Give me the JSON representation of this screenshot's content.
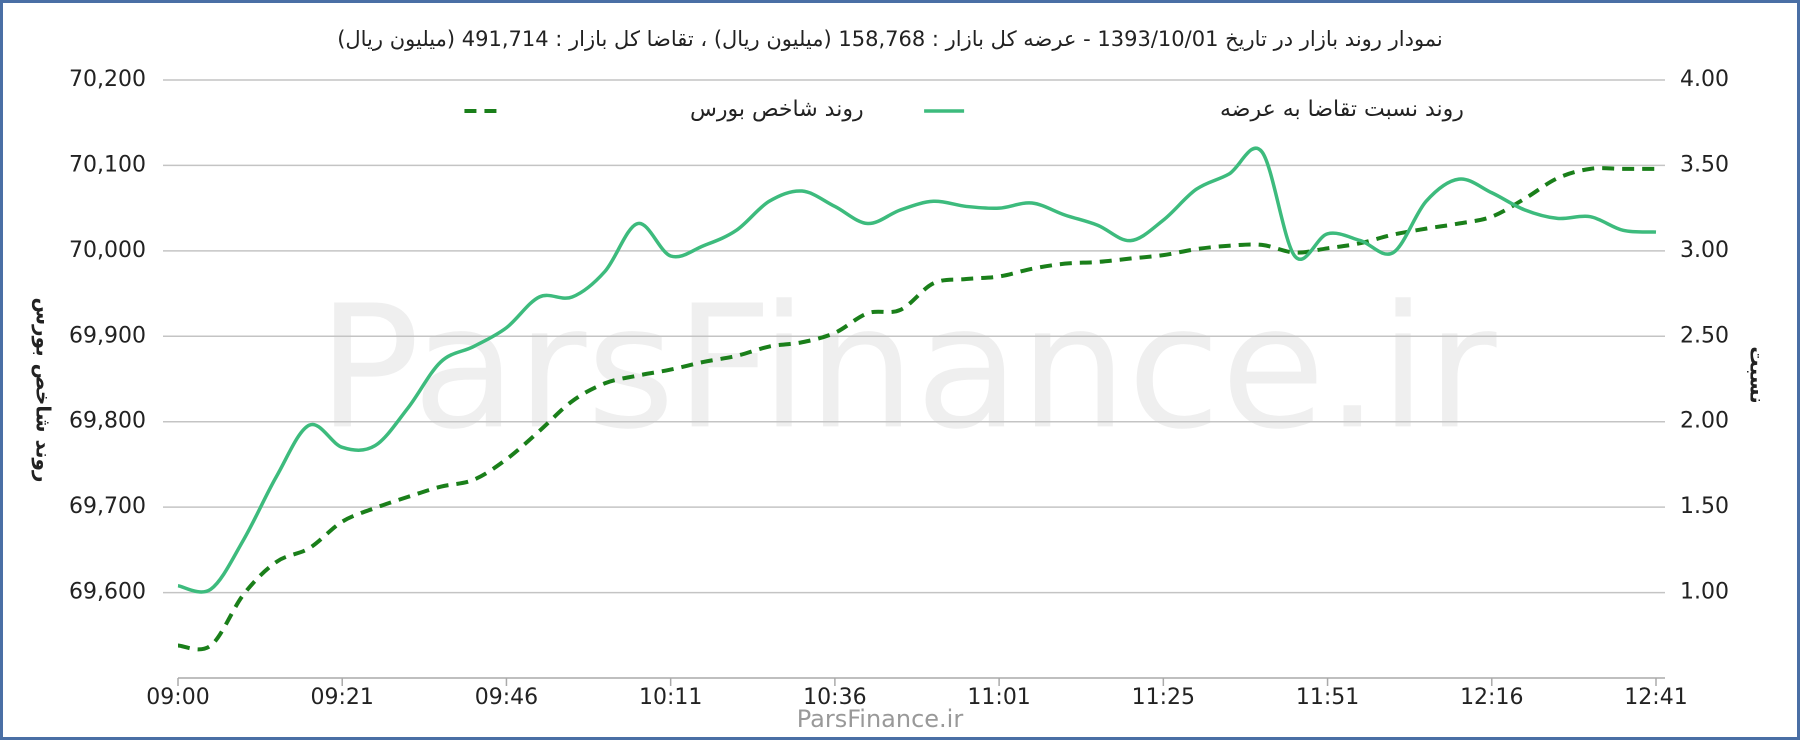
{
  "chart_data": {
    "type": "line",
    "title": "نمودار روند بازار در تاریخ 1393/10/01 - عرضه کل بازار : 158,768 (میلیون ریال) ، تقاضا کل بازار : 491,714 (میلیون ریال)",
    "watermark": "ParsFinance.ir",
    "source": "ParsFinance.ir",
    "y_label": "روند شاخص بورس",
    "y2_label": "نسبت",
    "legend": "top",
    "grid": true,
    "categories": [
      "09:00",
      null,
      null,
      null,
      null,
      "09:21",
      null,
      null,
      null,
      null,
      "09:46",
      null,
      null,
      null,
      null,
      "10:11",
      null,
      null,
      null,
      null,
      "10:36",
      null,
      null,
      null,
      null,
      "11:01",
      null,
      null,
      null,
      null,
      "11:25",
      null,
      null,
      null,
      null,
      "11:51",
      null,
      null,
      null,
      null,
      "12:16",
      null,
      null,
      null,
      null,
      "12:41"
    ],
    "ylim": [
      69500,
      70200
    ],
    "yticks": [
      {
        "value": 69600,
        "label": "69,600"
      },
      {
        "value": 69700,
        "label": "69,700"
      },
      {
        "value": 69800,
        "label": "69,800"
      },
      {
        "value": 69900,
        "label": "69,900"
      },
      {
        "value": 70000,
        "label": "70,000"
      },
      {
        "value": 70100,
        "label": "70,100"
      },
      {
        "value": 70200,
        "label": "70,200"
      }
    ],
    "y2lim": [
      0.5,
      4.0
    ],
    "y2ticks": [
      {
        "value": 1.0,
        "label": "1.00"
      },
      {
        "value": 1.5,
        "label": "1.50"
      },
      {
        "value": 2.0,
        "label": "2.00"
      },
      {
        "value": 2.5,
        "label": "2.50"
      },
      {
        "value": 3.0,
        "label": "3.00"
      },
      {
        "value": 3.5,
        "label": "3.50"
      },
      {
        "value": 4.0,
        "label": "4.00"
      }
    ],
    "series": [
      {
        "name": "روند شاخص بورس",
        "color": "#1a7f1a",
        "dash": true,
        "values": [
          69538,
          69538,
          69598,
          69636,
          69652,
          69683,
          69699,
          69712,
          69724,
          69732,
          69756,
          69789,
          69824,
          69845,
          69854,
          69861,
          69870,
          69877,
          69888,
          69893,
          69904,
          69927,
          69931,
          69962,
          69967,
          69970,
          69979,
          69985,
          69987,
          69991,
          69995,
          70002,
          70006,
          70007,
          69998,
          70003,
          70009,
          70019,
          70026,
          70032,
          70040,
          70061,
          70085,
          70096,
          70096,
          70096
        ]
      },
      {
        "name": "روند نسبت تقاضا به عرضه",
        "color": "#3dbb7d",
        "dash": false,
        "axis": "y2",
        "values": [
          1.04,
          1.02,
          1.31,
          1.68,
          1.98,
          1.85,
          1.86,
          2.08,
          2.35,
          2.44,
          2.55,
          2.73,
          2.73,
          2.88,
          3.16,
          2.97,
          3.03,
          3.12,
          3.29,
          3.35,
          3.26,
          3.16,
          3.24,
          3.29,
          3.26,
          3.25,
          3.28,
          3.21,
          3.15,
          3.06,
          3.18,
          3.36,
          3.45,
          3.58,
          2.97,
          3.1,
          3.06,
          2.99,
          3.29,
          3.42,
          3.34,
          3.24,
          3.19,
          3.2,
          3.12,
          3.11
        ]
      }
    ]
  }
}
